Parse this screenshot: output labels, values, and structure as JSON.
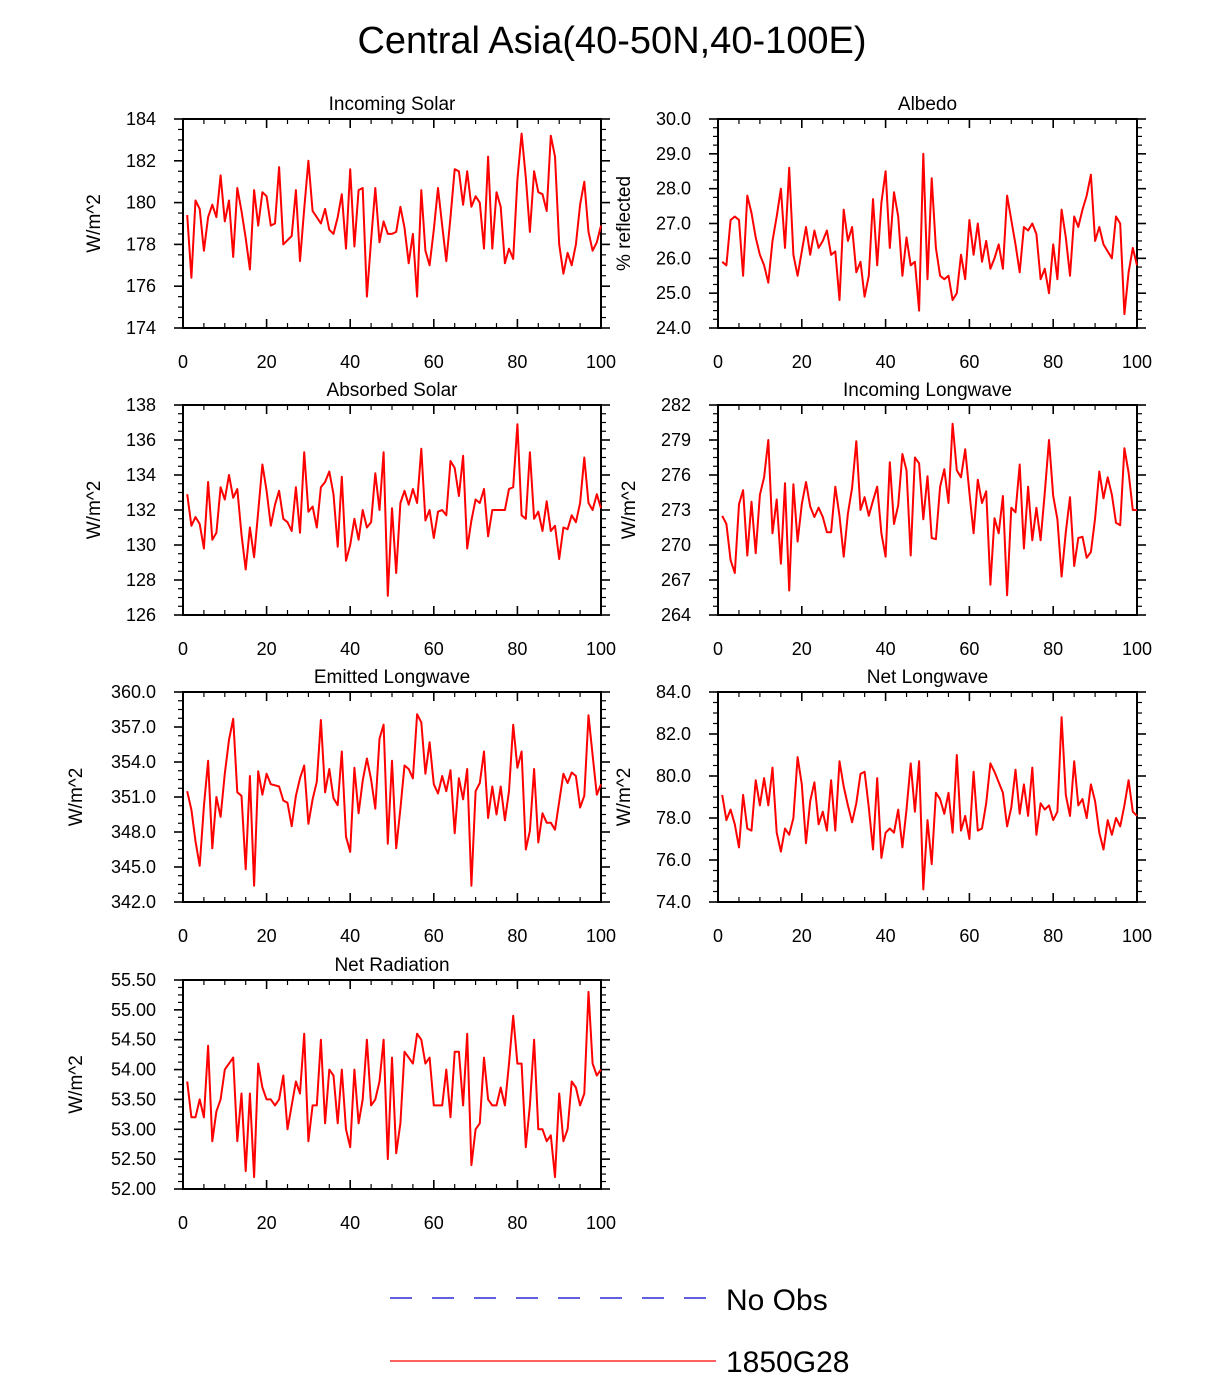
{
  "title": "Central Asia(40-50N,40-100E)",
  "colors": {
    "series": "#ff0000",
    "obs": "#0000cc",
    "axis": "#000000"
  },
  "legend": [
    {
      "label": "No Obs",
      "color": "#0000cc",
      "style": "dashed"
    },
    {
      "label": "1850G28",
      "color": "#ff0000",
      "style": "solid"
    }
  ],
  "chart_data": [
    {
      "type": "line",
      "title": "Incoming Solar",
      "ylabel": "W/m^2",
      "xlim": [
        0,
        100
      ],
      "ylim": [
        174,
        184
      ],
      "xticks": [
        "0",
        "20",
        "40",
        "60",
        "80",
        "100"
      ],
      "yticks": [
        "174",
        "176",
        "178",
        "180",
        "182",
        "184"
      ],
      "series": [
        {
          "name": "1850G28",
          "x_start": 1,
          "values": [
            179.4,
            176.4,
            180.1,
            179.7,
            177.7,
            179.3,
            179.9,
            179.3,
            181.3,
            179.1,
            180.1,
            177.4,
            180.7,
            179.6,
            178.3,
            176.8,
            180.6,
            178.9,
            180.5,
            180.3,
            178.9,
            179.0,
            181.7,
            178.0,
            178.2,
            178.4,
            180.6,
            177.2,
            179.7,
            182.0,
            179.6,
            179.3,
            179.0,
            179.7,
            178.7,
            178.5,
            179.3,
            180.4,
            177.8,
            181.6,
            177.9,
            180.6,
            180.7,
            175.5,
            178.2,
            180.7,
            178.1,
            179.1,
            178.5,
            178.5,
            178.6,
            179.8,
            178.8,
            177.1,
            178.5,
            175.5,
            180.6,
            177.7,
            177.0,
            178.7,
            180.7,
            178.9,
            177.2,
            179.3,
            181.6,
            181.5,
            179.9,
            181.5,
            179.8,
            180.3,
            180.0,
            177.8,
            182.2,
            177.8,
            180.5,
            179.8,
            177.1,
            177.8,
            177.3,
            181.1,
            183.3,
            181.2,
            178.6,
            181.5,
            180.5,
            180.4,
            179.6,
            183.2,
            182.2,
            178.0,
            176.6,
            177.6,
            177.0,
            178.0,
            179.9,
            181.0,
            178.6,
            177.7,
            178.1,
            178.9
          ]
        }
      ]
    },
    {
      "type": "line",
      "title": "Albedo",
      "ylabel": "% reflected",
      "xlim": [
        0,
        100
      ],
      "ylim": [
        24,
        30
      ],
      "xticks": [
        "0",
        "20",
        "40",
        "60",
        "80",
        "100"
      ],
      "yticks": [
        "24.0",
        "25.0",
        "26.0",
        "27.0",
        "28.0",
        "29.0",
        "30.0"
      ],
      "series": [
        {
          "name": "1850G28",
          "x_start": 1,
          "values": [
            25.9,
            25.8,
            27.1,
            27.2,
            27.1,
            25.5,
            27.8,
            27.3,
            26.6,
            26.1,
            25.8,
            25.3,
            26.5,
            27.2,
            28.0,
            26.3,
            28.6,
            26.1,
            25.5,
            26.2,
            26.9,
            26.1,
            26.8,
            26.3,
            26.5,
            26.8,
            26.1,
            26.2,
            24.8,
            27.4,
            26.5,
            26.9,
            25.6,
            25.9,
            24.9,
            25.5,
            27.7,
            25.8,
            27.6,
            28.5,
            26.3,
            27.9,
            27.2,
            25.5,
            26.6,
            25.8,
            25.9,
            24.5,
            29.0,
            25.4,
            28.3,
            26.3,
            25.5,
            25.4,
            25.5,
            24.8,
            25.0,
            26.1,
            25.4,
            27.1,
            26.1,
            27.0,
            25.9,
            26.5,
            25.7,
            26.0,
            26.4,
            25.7,
            27.8,
            27.1,
            26.4,
            25.6,
            26.9,
            26.8,
            27.0,
            26.7,
            25.4,
            25.7,
            25.0,
            26.4,
            25.4,
            27.4,
            26.6,
            25.5,
            27.2,
            26.9,
            27.4,
            27.8,
            28.4,
            26.5,
            26.9,
            26.4,
            26.2,
            26.0,
            27.2,
            27.0,
            24.4,
            25.6,
            26.3,
            25.8
          ]
        }
      ]
    },
    {
      "type": "line",
      "title": "Absorbed Solar",
      "ylabel": "W/m^2",
      "xlim": [
        0,
        100
      ],
      "ylim": [
        126,
        138
      ],
      "xticks": [
        "0",
        "20",
        "40",
        "60",
        "80",
        "100"
      ],
      "yticks": [
        "126",
        "128",
        "130",
        "132",
        "134",
        "136",
        "138"
      ],
      "series": [
        {
          "name": "1850G28",
          "x_start": 1,
          "values": [
            132.9,
            131.1,
            131.6,
            131.2,
            129.8,
            133.6,
            130.3,
            130.7,
            133.3,
            132.6,
            134.0,
            132.7,
            133.2,
            130.6,
            128.6,
            131.0,
            129.3,
            131.9,
            134.6,
            133.1,
            131.1,
            132.3,
            133.1,
            131.5,
            131.3,
            130.8,
            133.3,
            130.7,
            135.3,
            131.9,
            132.2,
            131.0,
            133.3,
            133.6,
            134.2,
            132.9,
            129.9,
            133.9,
            129.1,
            130.0,
            131.5,
            130.3,
            132.0,
            131.0,
            131.3,
            134.1,
            132.0,
            135.3,
            127.1,
            132.1,
            128.4,
            132.4,
            133.1,
            132.3,
            133.2,
            132.4,
            135.5,
            131.4,
            132.0,
            130.4,
            131.9,
            132.0,
            131.7,
            134.8,
            134.4,
            132.8,
            135.1,
            129.8,
            131.4,
            132.6,
            132.4,
            133.2,
            130.5,
            132.0,
            132.0,
            132.0,
            132.0,
            133.2,
            133.3,
            136.9,
            131.7,
            131.5,
            135.3,
            131.5,
            131.9,
            130.8,
            132.5,
            130.8,
            131.1,
            129.2,
            131.0,
            130.9,
            131.7,
            131.3,
            132.4,
            135.0,
            132.4,
            132.0,
            132.9,
            132.1
          ]
        }
      ]
    },
    {
      "type": "line",
      "title": "Incoming Longwave",
      "ylabel": "W/m^2",
      "xlim": [
        0,
        100
      ],
      "ylim": [
        264,
        282
      ],
      "xticks": [
        "0",
        "20",
        "40",
        "60",
        "80",
        "100"
      ],
      "yticks": [
        "264",
        "267",
        "270",
        "273",
        "276",
        "279",
        "282"
      ],
      "series": [
        {
          "name": "1850G28",
          "x_start": 1,
          "values": [
            272.5,
            271.8,
            268.7,
            267.6,
            273.5,
            274.7,
            269.1,
            273.7,
            269.3,
            274.3,
            275.8,
            279.0,
            271.0,
            273.9,
            268.4,
            275.3,
            266.1,
            275.2,
            270.3,
            273.5,
            275.4,
            273.3,
            272.4,
            273.2,
            272.4,
            271.1,
            271.1,
            275.0,
            272.5,
            269.0,
            272.7,
            274.9,
            278.9,
            273.0,
            274.1,
            272.5,
            273.8,
            275.0,
            271.0,
            269.0,
            277.1,
            271.8,
            273.4,
            277.8,
            276.4,
            269.1,
            277.5,
            277.0,
            272.2,
            275.9,
            270.6,
            270.5,
            275.0,
            276.5,
            273.6,
            280.4,
            276.4,
            275.8,
            278.2,
            274.5,
            271.0,
            275.6,
            273.6,
            274.6,
            266.6,
            272.3,
            271.0,
            274.2,
            265.7,
            273.2,
            272.8,
            276.9,
            269.7,
            275.0,
            270.4,
            273.2,
            270.4,
            274.5,
            279.0,
            274.2,
            272.2,
            267.3,
            271.1,
            274.1,
            268.2,
            270.6,
            270.7,
            268.9,
            269.4,
            272.3,
            276.3,
            274.0,
            275.8,
            274.3,
            271.9,
            271.7,
            278.3,
            276.2,
            273.0,
            273.0
          ]
        }
      ]
    },
    {
      "type": "line",
      "title": "Emitted Longwave",
      "ylabel": "W/m^2",
      "xlim": [
        0,
        100
      ],
      "ylim": [
        342,
        360
      ],
      "xticks": [
        "0",
        "20",
        "40",
        "60",
        "80",
        "100"
      ],
      "yticks": [
        "342.0",
        "345.0",
        "348.0",
        "351.0",
        "354.0",
        "357.0",
        "360.0"
      ],
      "series": [
        {
          "name": "1850G28",
          "x_start": 1,
          "values": [
            351.5,
            349.9,
            347.2,
            345.1,
            350.2,
            354.1,
            346.6,
            351.0,
            349.3,
            353.0,
            355.9,
            357.7,
            351.4,
            351.1,
            344.8,
            352.8,
            343.4,
            353.2,
            351.2,
            353.0,
            352.1,
            352.0,
            351.9,
            350.7,
            350.5,
            348.5,
            351.1,
            352.6,
            353.7,
            348.7,
            350.8,
            352.3,
            357.6,
            351.4,
            353.4,
            350.9,
            350.3,
            354.9,
            347.6,
            346.3,
            353.5,
            349.6,
            352.4,
            354.3,
            352.5,
            350.0,
            356.0,
            357.2,
            347.0,
            354.1,
            346.6,
            350.0,
            353.7,
            353.4,
            352.6,
            358.1,
            357.4,
            353.0,
            355.7,
            352.1,
            351.3,
            352.8,
            351.5,
            353.3,
            347.9,
            352.6,
            350.8,
            353.4,
            343.4,
            351.5,
            352.2,
            354.9,
            349.2,
            351.9,
            349.5,
            351.9,
            349.0,
            351.5,
            357.2,
            353.5,
            354.9,
            346.5,
            348.1,
            353.4,
            347.1,
            349.6,
            348.8,
            348.8,
            348.2,
            350.6,
            353.0,
            352.2,
            353.1,
            352.8,
            350.1,
            351.1,
            358.0,
            354.6,
            351.2,
            352.1
          ]
        }
      ]
    },
    {
      "type": "line",
      "title": "Net Longwave",
      "ylabel": "W/m^2",
      "xlim": [
        0,
        100
      ],
      "ylim": [
        74,
        84
      ],
      "xticks": [
        "0",
        "20",
        "40",
        "60",
        "80",
        "100"
      ],
      "yticks": [
        "74.0",
        "76.0",
        "78.0",
        "80.0",
        "82.0",
        "84.0"
      ],
      "series": [
        {
          "name": "1850G28",
          "x_start": 1,
          "values": [
            79.1,
            77.9,
            78.4,
            77.7,
            76.6,
            79.1,
            77.5,
            77.4,
            79.8,
            78.6,
            79.9,
            78.6,
            80.4,
            77.3,
            76.4,
            77.5,
            77.2,
            78.0,
            80.9,
            79.6,
            76.8,
            78.8,
            79.7,
            77.7,
            78.3,
            77.4,
            79.8,
            77.4,
            80.7,
            79.5,
            78.6,
            77.8,
            78.7,
            80.1,
            80.2,
            78.5,
            76.5,
            79.9,
            76.1,
            77.3,
            77.5,
            77.3,
            78.4,
            76.6,
            78.4,
            80.6,
            78.3,
            80.7,
            74.6,
            77.9,
            75.8,
            79.2,
            78.9,
            78.2,
            79.2,
            77.3,
            81.0,
            77.4,
            78.1,
            77.0,
            80.2,
            77.4,
            77.5,
            78.7,
            80.6,
            80.2,
            79.7,
            79.2,
            77.6,
            78.5,
            80.3,
            78.2,
            79.6,
            78.1,
            80.4,
            77.2,
            78.7,
            78.4,
            78.6,
            77.9,
            78.3,
            82.8,
            79.1,
            78.1,
            80.7,
            78.6,
            78.9,
            78.0,
            79.6,
            78.8,
            77.3,
            76.5,
            77.9,
            77.2,
            78.0,
            77.6,
            78.6,
            79.8,
            78.3,
            78.1
          ]
        }
      ]
    },
    {
      "type": "line",
      "title": "Net Radiation",
      "ylabel": "W/m^2",
      "xlim": [
        0,
        100
      ],
      "ylim": [
        52,
        55.5
      ],
      "xticks": [
        "0",
        "20",
        "40",
        "60",
        "80",
        "100"
      ],
      "yticks": [
        "52.00",
        "52.50",
        "53.00",
        "53.50",
        "54.00",
        "54.50",
        "55.00",
        "55.50"
      ],
      "series": [
        {
          "name": "1850G28",
          "x_start": 1,
          "values": [
            53.8,
            53.2,
            53.2,
            53.5,
            53.2,
            54.4,
            52.8,
            53.3,
            53.5,
            54.0,
            54.1,
            54.2,
            52.8,
            53.6,
            52.3,
            53.6,
            52.2,
            54.1,
            53.7,
            53.5,
            53.5,
            53.4,
            53.5,
            53.9,
            53.0,
            53.4,
            53.8,
            53.6,
            54.6,
            52.8,
            53.4,
            53.4,
            54.5,
            53.1,
            54.0,
            53.9,
            53.1,
            54.0,
            53.0,
            52.7,
            54.0,
            53.1,
            53.5,
            54.5,
            53.4,
            53.5,
            53.8,
            54.5,
            52.5,
            54.2,
            52.6,
            53.1,
            54.3,
            54.2,
            54.1,
            54.6,
            54.5,
            54.1,
            54.2,
            53.4,
            53.4,
            53.4,
            54.0,
            53.2,
            54.3,
            54.3,
            53.4,
            54.6,
            52.4,
            53.0,
            53.1,
            54.2,
            53.5,
            53.4,
            53.4,
            53.7,
            53.4,
            54.1,
            54.9,
            54.1,
            54.1,
            52.7,
            53.4,
            54.5,
            53.0,
            53.0,
            52.8,
            52.9,
            52.2,
            53.6,
            52.8,
            53.0,
            53.8,
            53.7,
            53.4,
            53.6,
            55.3,
            54.1,
            53.9,
            54.0
          ]
        }
      ]
    }
  ]
}
